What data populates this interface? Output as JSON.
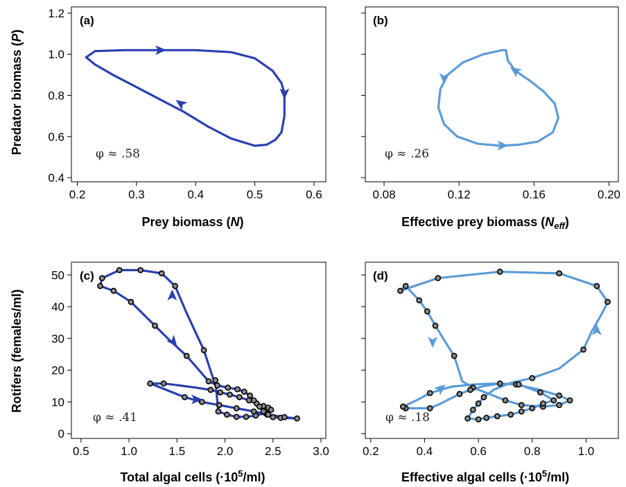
{
  "figure": {
    "colors": {
      "dark": "#2a3fb0",
      "light": "#5b9bd5",
      "marker_fill": "#8a8a8a",
      "marker_edge": "#000000"
    }
  },
  "chart_data": [
    {
      "id": "a",
      "type": "line",
      "tag": "(a)",
      "annotation": "φ ≈ .58",
      "color": "dark",
      "xlabel": "Prey biomass (",
      "xlabel_var": "N",
      "xlabel_end": ")",
      "ylabel": "Predator biomass (",
      "ylabel_var": "P",
      "ylabel_end": ")",
      "xlim": [
        0.19,
        0.62
      ],
      "ylim": [
        0.38,
        1.23
      ],
      "xticks": [
        0.2,
        0.3,
        0.4,
        0.5,
        0.6
      ],
      "xtick_labels": [
        "0.2",
        "0.3",
        "0.4",
        "0.5",
        "0.6"
      ],
      "yticks": [
        0.4,
        0.6,
        0.8,
        1.0,
        1.2
      ],
      "ytick_labels": [
        "0.4",
        "0.6",
        "0.8",
        "1.0",
        "1.2"
      ],
      "grid": false,
      "markers": false,
      "x": [
        0.215,
        0.23,
        0.28,
        0.34,
        0.4,
        0.46,
        0.5,
        0.53,
        0.545,
        0.55,
        0.55,
        0.545,
        0.535,
        0.52,
        0.5,
        0.46,
        0.42,
        0.38,
        0.34,
        0.3,
        0.26,
        0.23,
        0.215
      ],
      "y": [
        0.985,
        1.015,
        1.02,
        1.02,
        1.02,
        1.01,
        0.98,
        0.92,
        0.86,
        0.81,
        0.7,
        0.62,
        0.585,
        0.56,
        0.555,
        0.59,
        0.65,
        0.72,
        0.78,
        0.84,
        0.9,
        0.95,
        0.985
      ],
      "arrows": [
        {
          "x": 0.34,
          "y": 1.02,
          "dir": "right"
        },
        {
          "x": 0.55,
          "y": 0.81,
          "dir": "down"
        },
        {
          "x": 0.375,
          "y": 0.76,
          "dir": "upleft"
        }
      ]
    },
    {
      "id": "b",
      "type": "line",
      "tag": "(b)",
      "annotation": "φ ≈ .26",
      "color": "light",
      "xlabel": "Effective prey biomass (",
      "xlabel_var": "N",
      "xlabel_sub": "eff",
      "xlabel_end": ")",
      "ylabel": "",
      "ylabel_var": "",
      "ylabel_end": "",
      "xlim": [
        0.07,
        0.205
      ],
      "ylim": [
        0.38,
        1.23
      ],
      "xticks": [
        0.08,
        0.12,
        0.16,
        0.2
      ],
      "xtick_labels": [
        "0.08",
        "0.12",
        "0.16",
        "0.20"
      ],
      "yticks": [
        0.4,
        0.6,
        0.8,
        1.0,
        1.2
      ],
      "ytick_labels": [
        "",
        "",
        "",
        "",
        ""
      ],
      "grid": false,
      "markers": false,
      "x": [
        0.145,
        0.146,
        0.15,
        0.158,
        0.165,
        0.171,
        0.173,
        0.17,
        0.162,
        0.152,
        0.142,
        0.13,
        0.119,
        0.112,
        0.109,
        0.11,
        0.114,
        0.122,
        0.133,
        0.143,
        0.145
      ],
      "y": [
        1.02,
        0.97,
        0.92,
        0.87,
        0.82,
        0.76,
        0.69,
        0.62,
        0.575,
        0.56,
        0.555,
        0.565,
        0.6,
        0.66,
        0.74,
        0.83,
        0.9,
        0.96,
        1.0,
        1.02,
        1.02
      ],
      "arrows": [
        {
          "x": 0.15,
          "y": 0.92,
          "dir": "upleft"
        },
        {
          "x": 0.112,
          "y": 0.885,
          "dir": "down"
        },
        {
          "x": 0.143,
          "y": 0.556,
          "dir": "right"
        }
      ]
    },
    {
      "id": "c",
      "type": "line",
      "tag": "(c)",
      "annotation": "φ ≈ .41",
      "color": "dark",
      "xlabel": "Total algal cells (·10",
      "xlabel_sup": "5",
      "xlabel_end": "/ml)",
      "ylabel": "Rotifers (females/ml)",
      "ylabel_var": "",
      "ylabel_end": "",
      "xlim": [
        0.4,
        3.05
      ],
      "ylim": [
        -1.5,
        54
      ],
      "xticks": [
        0.5,
        1.0,
        1.5,
        2.0,
        2.5,
        3.0
      ],
      "xtick_labels": [
        "0.5",
        "1.0",
        "1.5",
        "2.0",
        "2.5",
        "3.0"
      ],
      "yticks": [
        0,
        10,
        20,
        30,
        40,
        50
      ],
      "ytick_labels": [
        "0",
        "10",
        "20",
        "30",
        "40",
        "50"
      ],
      "grid": false,
      "markers": true,
      "x": [
        1.22,
        1.36,
        1.5,
        1.7,
        1.85,
        1.95,
        2.05,
        2.15,
        2.25,
        2.33,
        2.4,
        2.45,
        2.48,
        2.42,
        2.32,
        2.22,
        2.12,
        2.02,
        1.93,
        1.9,
        1.88,
        1.78,
        1.6,
        1.48,
        1.34,
        1.12,
        0.9,
        0.72,
        0.7,
        0.84,
        1.02,
        1.27,
        1.42,
        1.6,
        1.83,
        1.92,
        2.03,
        2.13,
        2.2,
        2.26,
        2.3,
        2.36,
        2.4,
        2.44,
        2.5,
        2.58,
        2.75,
        2.62,
        2.45,
        2.3,
        2.12,
        1.94,
        1.76,
        1.58,
        1.22
      ],
      "y": [
        15.8,
        15.8,
        15.3,
        14.5,
        13.8,
        13.0,
        12.3,
        11.5,
        10.5,
        9.5,
        8.7,
        8.2,
        7.5,
        6.5,
        5.7,
        5.3,
        5.3,
        6.0,
        7.0,
        16.8,
        17.0,
        26.3,
        38.0,
        46.5,
        50.5,
        51.5,
        51.5,
        49.0,
        46.5,
        45.0,
        41.5,
        34.0,
        29.5,
        24.5,
        16.5,
        15.2,
        14.5,
        14.0,
        13.2,
        12.0,
        10.5,
        8.5,
        7.0,
        6.0,
        5.2,
        5.0,
        4.8,
        5.2,
        6.0,
        7.0,
        8.0,
        9.0,
        10.0,
        11.5,
        15.8
      ],
      "marker_idx": [
        0,
        1,
        4,
        5,
        6,
        7,
        8,
        9,
        10,
        11,
        12,
        13,
        14,
        15,
        16,
        17,
        18,
        19,
        21,
        23,
        24,
        25,
        26,
        27,
        28,
        29,
        30,
        31,
        33,
        34,
        35,
        36,
        37,
        38,
        39,
        40,
        41,
        42,
        43,
        44,
        45,
        46,
        47,
        48,
        49,
        50,
        51,
        52,
        53
      ],
      "arrows": [
        {
          "x": 1.45,
          "y": 43.5,
          "dir": "up"
        },
        {
          "x": 1.46,
          "y": 29,
          "dir": "downright"
        },
        {
          "x": 1.7,
          "y": 10.8,
          "dir": "right"
        }
      ]
    },
    {
      "id": "d",
      "type": "line",
      "tag": "(d)",
      "annotation": "φ ≈ .18",
      "color": "light",
      "xlabel": "Effective algal cells (·10",
      "xlabel_sup": "5",
      "xlabel_end": "/ml)",
      "ylabel": "",
      "ylabel_var": "",
      "ylabel_end": "",
      "xlim": [
        0.18,
        1.12
      ],
      "ylim": [
        -1.5,
        54
      ],
      "xticks": [
        0.2,
        0.4,
        0.6,
        0.8,
        1.0
      ],
      "xtick_labels": [
        "0.2",
        "0.4",
        "0.6",
        "0.8",
        "1.0"
      ],
      "yticks": [
        0,
        10,
        20,
        30,
        40,
        50
      ],
      "ytick_labels": [
        "",
        "",
        "",
        "",
        ""
      ],
      "grid": false,
      "markers": true,
      "x": [
        0.32,
        0.37,
        0.42,
        0.5,
        0.58,
        0.66,
        0.74,
        0.82,
        0.9,
        0.94,
        0.9,
        0.84,
        0.76,
        0.7,
        0.64,
        0.58,
        0.54,
        0.51,
        0.48,
        0.44,
        0.41,
        0.38,
        0.33,
        0.31,
        0.45,
        0.68,
        0.9,
        1.04,
        1.08,
        1.06,
        1.02,
        0.99,
        0.9,
        0.8,
        0.72,
        0.66,
        0.62,
        0.6,
        0.58,
        0.56,
        0.6,
        0.63,
        0.67,
        0.72,
        0.76,
        0.8,
        0.84,
        0.88,
        0.83,
        0.75,
        0.68,
        0.62,
        0.57,
        0.53,
        0.46,
        0.42,
        0.33,
        0.32
      ],
      "y": [
        8.5,
        10.5,
        12.8,
        14.8,
        15.5,
        15.8,
        15.5,
        14.0,
        12.0,
        10.5,
        9.0,
        8.5,
        9.0,
        10.5,
        12.5,
        14.5,
        16.5,
        24.5,
        28.5,
        34.0,
        38.5,
        42.0,
        46.5,
        45.0,
        49.0,
        51.0,
        50.5,
        46.5,
        41.5,
        38.0,
        32.0,
        26.5,
        20.5,
        17.5,
        16.0,
        14.0,
        11.5,
        9.5,
        7.5,
        4.8,
        4.5,
        5.0,
        5.5,
        6.0,
        7.0,
        8.0,
        9.5,
        10.5,
        13.0,
        15.5,
        15.8,
        15.0,
        13.8,
        12.5,
        9.5,
        8.0,
        8.0,
        8.5
      ],
      "marker_idx": [
        0,
        2,
        6,
        8,
        9,
        10,
        11,
        12,
        13,
        15,
        17,
        19,
        20,
        21,
        22,
        23,
        24,
        25,
        26,
        27,
        28,
        31,
        33,
        36,
        37,
        38,
        39,
        40,
        41,
        42,
        43,
        44,
        45,
        46,
        47,
        48,
        49,
        50,
        52,
        53,
        55,
        56,
        57
      ],
      "arrows": [
        {
          "x": 0.43,
          "y": 29,
          "dir": "down"
        },
        {
          "x": 1.04,
          "y": 32.5,
          "dir": "up"
        },
        {
          "x": 0.46,
          "y": 14.2,
          "dir": "upright"
        }
      ]
    }
  ]
}
